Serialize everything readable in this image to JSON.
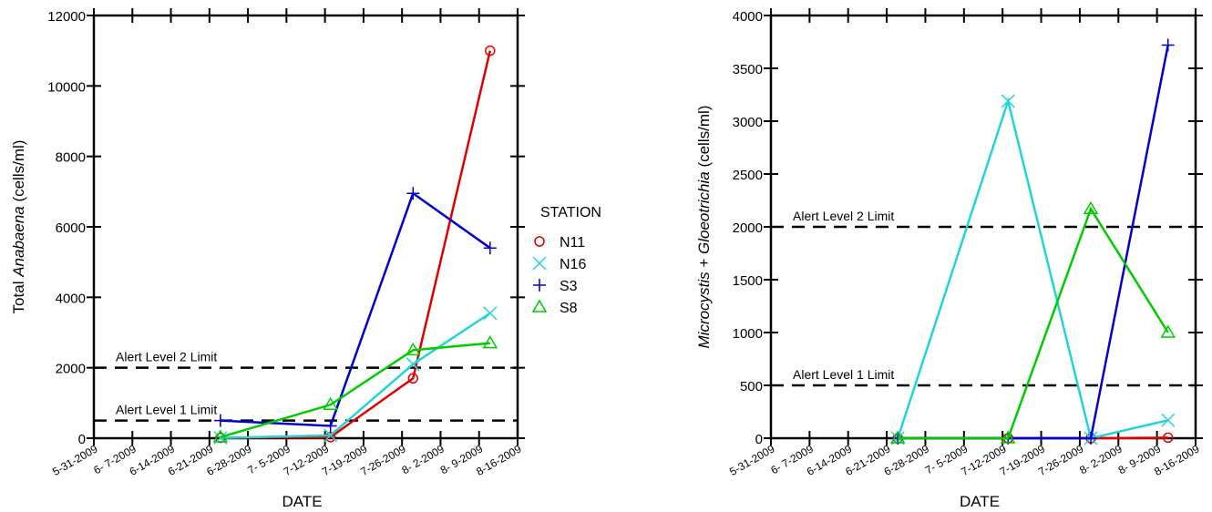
{
  "legend": {
    "title": "STATION",
    "entries": [
      {
        "name": "N11",
        "color": "#e00000",
        "marker": "circle"
      },
      {
        "name": "N16",
        "color": "#22d3d8",
        "marker": "x"
      },
      {
        "name": "S3",
        "color": "#0000cc",
        "marker": "plus"
      },
      {
        "name": "S8",
        "color": "#00cc00",
        "marker": "triangle"
      }
    ]
  },
  "chart_data": [
    {
      "type": "line",
      "xlabel": "DATE",
      "ylabel_prefix": "Total ",
      "ylabel_italic": "Anabaena",
      "ylabel_suffix": "  (cells/ml)",
      "ylim": [
        0,
        12000
      ],
      "yticks": [
        "0",
        "2000",
        "4000",
        "6000",
        "8000",
        "10000",
        "12000"
      ],
      "xticks": [
        "5-31-2009",
        "6- 7-2009",
        "6-14-2009",
        "6-21-2009",
        "6-28-2009",
        "7- 5-2009",
        "7-12-2009",
        "7-19-2009",
        "7-26-2009",
        "8- 2-2009",
        "8- 9-2009",
        "8-16-2009"
      ],
      "x_range": [
        "5-31-2009",
        "8-16-2009"
      ],
      "reference_lines": [
        {
          "label": "Alert  Level 1 Limit",
          "value": 500
        },
        {
          "label": "Alert  Level 2 Limit",
          "value": 2000
        }
      ],
      "series": [
        {
          "name": "N11",
          "points": [
            [
              "6-23-2009",
              10
            ],
            [
              "7-13-2009",
              30
            ],
            [
              "7-28-2009",
              1700
            ],
            [
              "8-11-2009",
              11000
            ]
          ]
        },
        {
          "name": "N16",
          "points": [
            [
              "6-23-2009",
              10
            ],
            [
              "7-13-2009",
              80
            ],
            [
              "7-28-2009",
              2100
            ],
            [
              "8-11-2009",
              3550
            ]
          ]
        },
        {
          "name": "S3",
          "points": [
            [
              "6-23-2009",
              500
            ],
            [
              "7-13-2009",
              350
            ],
            [
              "7-28-2009",
              6950
            ],
            [
              "8-11-2009",
              5400
            ]
          ]
        },
        {
          "name": "S8",
          "points": [
            [
              "6-23-2009",
              30
            ],
            [
              "7-13-2009",
              950
            ],
            [
              "7-28-2009",
              2500
            ],
            [
              "8-11-2009",
              2700
            ]
          ]
        }
      ]
    },
    {
      "type": "line",
      "xlabel": "DATE",
      "ylabel_italic": "Microcystis",
      "ylabel_mid": " + ",
      "ylabel_italic2": "Gloeotrichia",
      "ylabel_suffix": " (cells/ml)",
      "ylim": [
        0,
        4000
      ],
      "yticks": [
        "0",
        "500",
        "1000",
        "1500",
        "2000",
        "2500",
        "3000",
        "3500",
        "4000"
      ],
      "xticks": [
        "5-31-2009",
        "6- 7-2009",
        "6-14-2009",
        "6-21-2009",
        "6-28-2009",
        "7- 5-2009",
        "7-12-2009",
        "7-19-2009",
        "7-26-2009",
        "8- 2-2009",
        "8- 9-2009",
        "8-16-2009"
      ],
      "x_range": [
        "5-31-2009",
        "8-16-2009"
      ],
      "reference_lines": [
        {
          "label": "Alert  Level 1 Limit",
          "value": 500
        },
        {
          "label": "Alert  Level 2 Limit",
          "value": 2000
        }
      ],
      "series": [
        {
          "name": "N11",
          "points": [
            [
              "6-23-2009",
              0
            ],
            [
              "7-13-2009",
              0
            ],
            [
              "7-28-2009",
              0
            ],
            [
              "8-11-2009",
              5
            ]
          ]
        },
        {
          "name": "N16",
          "points": [
            [
              "6-23-2009",
              0
            ],
            [
              "7-13-2009",
              3190
            ],
            [
              "7-28-2009",
              0
            ],
            [
              "8-11-2009",
              170
            ]
          ]
        },
        {
          "name": "S3",
          "points": [
            [
              "6-23-2009",
              0
            ],
            [
              "7-13-2009",
              0
            ],
            [
              "7-28-2009",
              0
            ],
            [
              "8-11-2009",
              3720
            ]
          ]
        },
        {
          "name": "S8",
          "points": [
            [
              "6-23-2009",
              0
            ],
            [
              "7-13-2009",
              0
            ],
            [
              "7-28-2009",
              2170
            ],
            [
              "8-11-2009",
              1000
            ]
          ]
        }
      ]
    }
  ]
}
